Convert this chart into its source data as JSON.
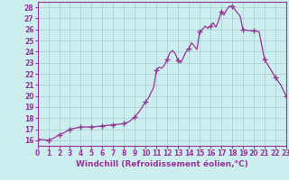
{
  "xlabel": "Windchill (Refroidissement éolien,°C)",
  "x_values": [
    0,
    0.5,
    1,
    1.5,
    2,
    2.5,
    3,
    3.5,
    4,
    4.5,
    5,
    5.5,
    6,
    6.5,
    7,
    7.5,
    8,
    8.5,
    9,
    9.5,
    10,
    10.25,
    10.5,
    10.75,
    11,
    11.25,
    11.5,
    11.75,
    12,
    12.25,
    12.5,
    12.75,
    13,
    13.25,
    13.5,
    13.75,
    14,
    14.25,
    14.5,
    14.75,
    15,
    15.25,
    15.5,
    15.75,
    16,
    16.25,
    16.5,
    16.75,
    17,
    17.25,
    17.5,
    17.75,
    18,
    18.25,
    18.5,
    18.75,
    19,
    19.5,
    20,
    20.5,
    21,
    21.5,
    22,
    22.5,
    23
  ],
  "y_values": [
    16.1,
    16.05,
    16.0,
    16.2,
    16.5,
    16.7,
    17.0,
    17.1,
    17.2,
    17.2,
    17.2,
    17.25,
    17.3,
    17.35,
    17.4,
    17.45,
    17.5,
    17.7,
    18.1,
    18.7,
    19.5,
    19.8,
    20.3,
    20.8,
    22.3,
    22.6,
    22.5,
    22.8,
    23.3,
    23.9,
    24.1,
    23.8,
    23.2,
    23.0,
    23.5,
    24.0,
    24.3,
    24.8,
    24.5,
    24.2,
    25.8,
    26.0,
    26.3,
    26.1,
    26.3,
    26.6,
    26.2,
    26.8,
    27.6,
    27.3,
    27.8,
    28.1,
    28.1,
    27.8,
    27.5,
    27.2,
    26.0,
    25.9,
    25.9,
    25.8,
    23.3,
    22.5,
    21.7,
    21.0,
    20.0
  ],
  "marker_x": [
    0,
    1,
    2,
    3,
    4,
    5,
    6,
    7,
    8,
    9,
    10,
    11,
    12,
    13,
    14,
    15,
    16,
    17,
    18,
    19,
    20,
    21,
    22,
    23
  ],
  "marker_y": [
    16.1,
    16.0,
    16.5,
    17.0,
    17.2,
    17.2,
    17.3,
    17.4,
    17.5,
    18.1,
    19.5,
    22.3,
    23.3,
    23.2,
    24.3,
    25.8,
    26.3,
    27.6,
    28.1,
    26.0,
    25.9,
    23.3,
    21.7,
    20.0
  ],
  "line_color": "#993399",
  "marker": "+",
  "marker_size": 4,
  "bg_color": "#cceeee",
  "grid_color": "#aacccc",
  "xlim": [
    0,
    23
  ],
  "ylim": [
    15.5,
    28.5
  ],
  "yticks": [
    16,
    17,
    18,
    19,
    20,
    21,
    22,
    23,
    24,
    25,
    26,
    27,
    28
  ],
  "xticks": [
    0,
    1,
    2,
    3,
    4,
    5,
    6,
    7,
    8,
    9,
    10,
    11,
    12,
    13,
    14,
    15,
    16,
    17,
    18,
    19,
    20,
    21,
    22,
    23
  ],
  "tick_fontsize": 5.5,
  "xlabel_fontsize": 6.5,
  "line_width": 0.9
}
